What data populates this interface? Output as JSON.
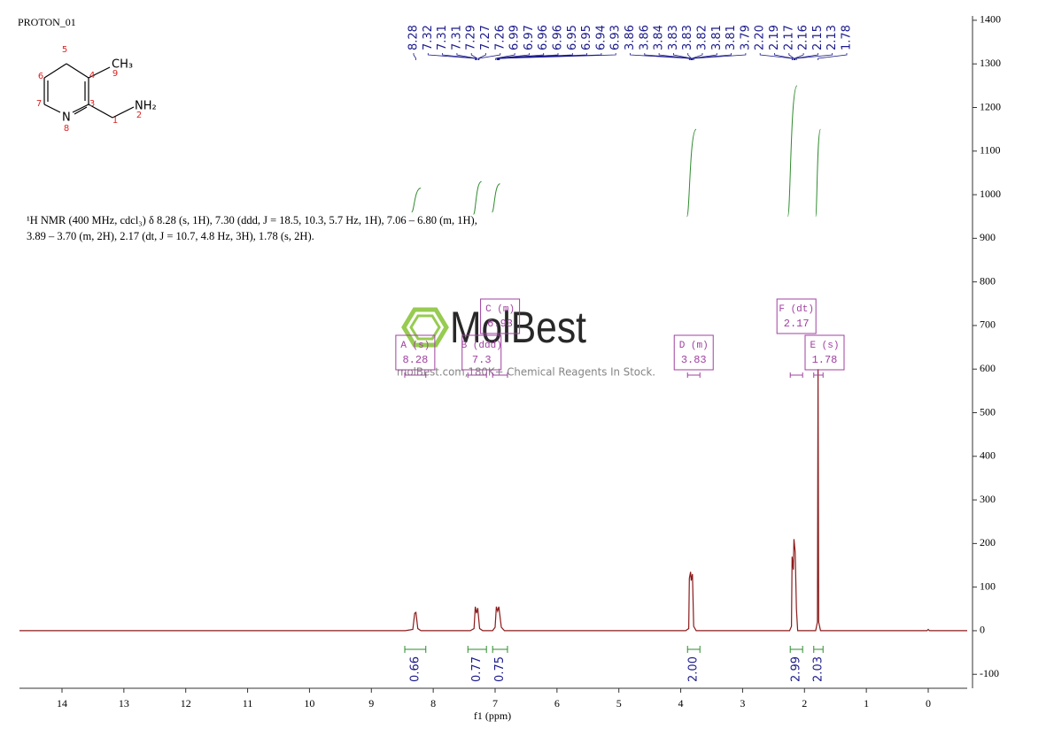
{
  "header": {
    "title": "PROTON_01"
  },
  "structure": {
    "nitrogen": "N",
    "methyl": "CH₃",
    "amine": "NH₂",
    "locants": [
      5,
      4,
      6,
      9,
      7,
      3,
      1,
      2,
      8
    ]
  },
  "description": [
    "¹H NMR (400 MHz, cdcl₃) δ 8.28 (s, 1H), 7.30 (ddd, J = 18.5, 10.3, 5.7 Hz, 1H), 7.06 – 6.80 (m, 1H),",
    "3.89 – 3.70 (m, 2H), 2.17 (dt, J = 10.7, 4.8 Hz, 3H), 1.78 (s, 2H)."
  ],
  "watermark": {
    "brand": "MolBest",
    "tagline": "molBest.com,180K+ Chemical Reagents In Stock."
  },
  "chart_data": {
    "type": "line",
    "color": "#8b1a1a",
    "xlabel": "f1 (ppm)",
    "xlim": [
      14.687,
      -0.63
    ],
    "ylim": [
      -132,
      1410
    ],
    "xticks": [
      14,
      13,
      12,
      11,
      10,
      9,
      8,
      7,
      6,
      5,
      4,
      3,
      2,
      1,
      0
    ],
    "yticks": [
      -100,
      0,
      100,
      200,
      300,
      400,
      500,
      600,
      700,
      800,
      900,
      1000,
      1100,
      1200,
      1300,
      1400
    ],
    "x": [
      14.687,
      8.45,
      8.33,
      8.3,
      8.28,
      8.25,
      8.2,
      7.4,
      7.34,
      7.32,
      7.3,
      7.28,
      7.25,
      7.2,
      7.04,
      7.0,
      6.98,
      6.96,
      6.94,
      6.9,
      6.85,
      3.92,
      3.87,
      3.86,
      3.84,
      3.83,
      3.81,
      3.79,
      3.75,
      2.24,
      2.21,
      2.2,
      2.18,
      2.17,
      2.15,
      2.13,
      2.11,
      1.82,
      1.79,
      1.78,
      1.77,
      1.74,
      0.02,
      0.0,
      -0.02,
      -0.63
    ],
    "values": [
      0,
      0,
      3,
      40,
      42,
      5,
      0,
      0,
      5,
      55,
      40,
      52,
      5,
      0,
      0,
      8,
      55,
      45,
      55,
      8,
      0,
      0,
      5,
      120,
      135,
      115,
      130,
      10,
      0,
      0,
      10,
      170,
      140,
      210,
      180,
      50,
      0,
      0,
      20,
      600,
      20,
      0,
      0,
      3,
      0,
      0
    ],
    "peak_color": "#1a1a8c",
    "peaks": [
      8.28,
      7.32,
      7.31,
      7.31,
      7.29,
      7.27,
      7.26,
      6.99,
      6.97,
      6.96,
      6.96,
      6.95,
      6.95,
      6.94,
      6.93,
      3.86,
      3.86,
      3.84,
      3.83,
      3.83,
      3.82,
      3.81,
      3.81,
      3.79,
      {
        "value": 2.2,
        "label": "2.20"
      },
      2.19,
      2.17,
      2.16,
      2.15,
      2.13,
      1.78
    ],
    "integral_color": "#2e8b2e",
    "integral_curves": [
      {
        "x": [
          8.35,
          8.2
        ],
        "y": [
          960,
          1015
        ]
      },
      {
        "x": [
          7.35,
          7.22
        ],
        "y": [
          955,
          1030
        ]
      },
      {
        "x": [
          7.05,
          6.92
        ],
        "y": [
          960,
          1025
        ]
      },
      {
        "x": [
          3.9,
          3.75
        ],
        "y": [
          950,
          1150
        ]
      },
      {
        "x": [
          2.27,
          2.12
        ],
        "y": [
          950,
          1250
        ]
      },
      {
        "x": [
          1.82,
          1.74
        ],
        "y": [
          950,
          1150
        ]
      }
    ],
    "integrations": [
      {
        "value": 0.66,
        "from": 8.46,
        "to": 8.12
      },
      {
        "value": 0.77,
        "from": 7.44,
        "to": 7.14
      },
      {
        "value": 0.75,
        "from": 7.04,
        "to": 6.8
      },
      {
        "value": {
          "value": 2,
          "label": "2.00"
        },
        "from": 3.89,
        "to": 3.69
      },
      {
        "value": 2.99,
        "from": 2.23,
        "to": 2.03
      },
      {
        "value": 2.03,
        "from": 1.85,
        "to": 1.7
      }
    ],
    "multiplet_color": "#a040a0",
    "multiplets": [
      {
        "label": "A (s)",
        "shift": 8.28,
        "from": 8.46,
        "to": 8.12
      },
      {
        "label": "B (ddd)",
        "shift": 7.3,
        "from": 7.44,
        "to": 7.14
      },
      {
        "label": "C (m)",
        "shift": 6.93,
        "from": 7.04,
        "to": 6.8
      },
      {
        "label": "D (m)",
        "shift": 3.83,
        "from": 3.89,
        "to": 3.69
      },
      {
        "label": "F (dt)",
        "shift": 2.17,
        "from": 2.23,
        "to": 2.03
      },
      {
        "label": "E (s)",
        "shift": 1.78,
        "from": 1.85,
        "to": 1.7
      }
    ]
  }
}
